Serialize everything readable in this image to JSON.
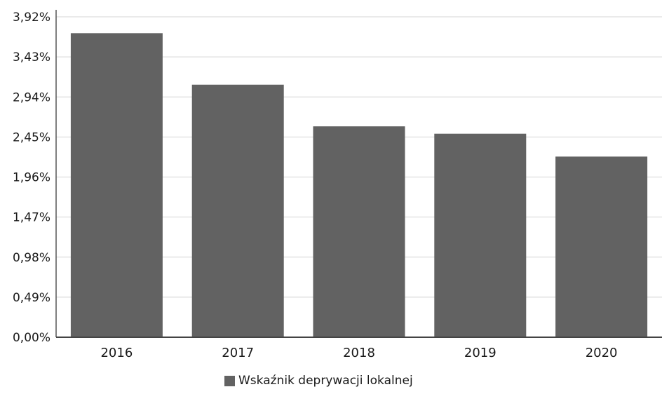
{
  "chart_data": {
    "type": "bar",
    "categories": [
      "2016",
      "2017",
      "2018",
      "2019",
      "2020"
    ],
    "series": [
      {
        "name": "Wskaźnik deprywacji lokalnej",
        "values": [
          3.72,
          3.09,
          2.58,
          2.49,
          2.21
        ],
        "color": "#626262"
      }
    ],
    "y_ticks": [
      "0,00%",
      "0,49%",
      "0,98%",
      "1,47%",
      "1,96%",
      "2,45%",
      "2,94%",
      "3,43%",
      "3,92%"
    ],
    "ylim": [
      0,
      3.92
    ],
    "grid": true,
    "legend_position": "bottom"
  }
}
